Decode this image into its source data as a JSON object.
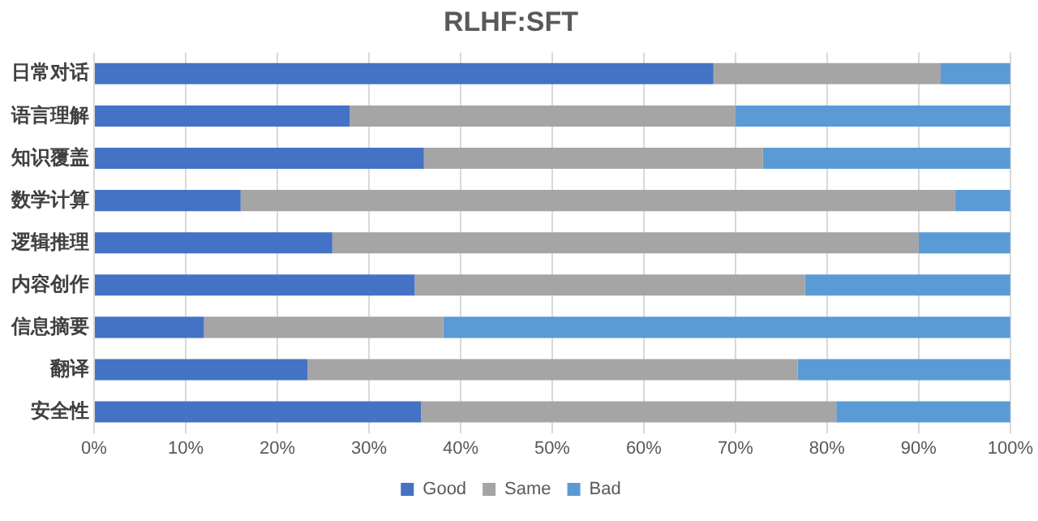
{
  "chart_data": {
    "type": "bar",
    "orientation": "horizontal",
    "stacked": true,
    "title": "RLHF:SFT",
    "categories": [
      "日常对话",
      "语言理解",
      "知识覆盖",
      "数学计算",
      "逻辑推理",
      "内容创作",
      "信息摘要",
      "翻译",
      "安全性"
    ],
    "series": [
      {
        "name": "Good",
        "color": "#4472c4",
        "values": [
          67.6,
          27.9,
          36.0,
          16.0,
          26.0,
          35.0,
          12.0,
          23.3,
          35.7
        ]
      },
      {
        "name": "Same",
        "color": "#a5a5a5",
        "values": [
          24.8,
          42.1,
          37.0,
          78.0,
          64.0,
          42.6,
          26.1,
          53.5,
          45.3
        ]
      },
      {
        "name": "Bad",
        "color": "#5b9bd5",
        "values": [
          7.6,
          30.0,
          27.0,
          6.0,
          10.0,
          22.4,
          61.9,
          23.2,
          19.0
        ]
      }
    ],
    "xlim": [
      0,
      100
    ],
    "xticks": [
      {
        "value": 0,
        "label": "0%"
      },
      {
        "value": 10,
        "label": "10%"
      },
      {
        "value": 20,
        "label": "20%"
      },
      {
        "value": 30,
        "label": "30%"
      },
      {
        "value": 40,
        "label": "40%"
      },
      {
        "value": 50,
        "label": "50%"
      },
      {
        "value": 60,
        "label": "60%"
      },
      {
        "value": 70,
        "label": "70%"
      },
      {
        "value": 80,
        "label": "80%"
      },
      {
        "value": 90,
        "label": "90%"
      },
      {
        "value": 100,
        "label": "100%"
      }
    ],
    "grid": "x",
    "legend": "bottom"
  }
}
